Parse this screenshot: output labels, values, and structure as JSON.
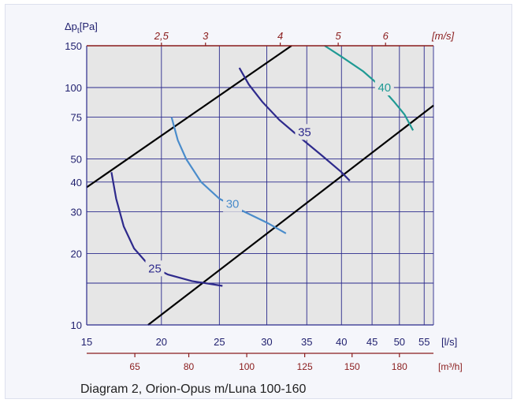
{
  "chart_data": {
    "type": "line",
    "caption": "Diagram 2, Orion-Opus m/Luna 100-160",
    "y_axis": {
      "label": "Δp",
      "label_sub": "t",
      "unit": "[Pa]",
      "scale": "log",
      "range": [
        10,
        150
      ],
      "ticks": [
        10,
        20,
        30,
        40,
        50,
        75,
        100,
        150
      ],
      "tick_labels": [
        "10",
        "20",
        "30",
        "40",
        "50",
        "75",
        "100",
        "150"
      ],
      "extra_gridlines": [
        15
      ]
    },
    "x_axis": {
      "unit": "[l/s]",
      "scale": "log",
      "range": [
        15,
        57
      ],
      "ticks": [
        15,
        20,
        25,
        30,
        35,
        40,
        45,
        50,
        55
      ],
      "tick_labels": [
        "15",
        "20",
        "25",
        "30",
        "35",
        "40",
        "45",
        "50",
        "55"
      ]
    },
    "x_axis_secondary": {
      "unit": "[m³/h]",
      "ticks": [
        65,
        80,
        100,
        125,
        150,
        180
      ],
      "tick_labels": [
        "65",
        "80",
        "100",
        "125",
        "150",
        "180"
      ]
    },
    "top_axis": {
      "unit": "[m/s]",
      "ticks": [
        {
          "label": "2,5",
          "at_flow": 20
        },
        {
          "label": "3",
          "at_flow": 23.7
        },
        {
          "label": "4",
          "at_flow": 31.6
        },
        {
          "label": "5",
          "at_flow": 39.5
        },
        {
          "label": "6",
          "at_flow": 47.4
        }
      ]
    },
    "limit_lines": [
      {
        "points": [
          [
            15,
            38
          ],
          [
            33,
            150
          ]
        ]
      },
      {
        "points": [
          [
            19,
            10
          ],
          [
            57,
            84
          ]
        ]
      }
    ],
    "series": [
      {
        "name": "25",
        "color": "#2e2a8c",
        "points": [
          [
            16.5,
            44
          ],
          [
            16.8,
            34
          ],
          [
            17.3,
            26
          ],
          [
            18.0,
            21
          ],
          [
            19.0,
            18
          ],
          [
            20.5,
            16.3
          ],
          [
            22.5,
            15.3
          ],
          [
            25.3,
            14.6
          ]
        ],
        "label_at": [
          19.5,
          17.3
        ]
      },
      {
        "name": "30",
        "color": "#4a8ccb",
        "points": [
          [
            20.8,
            75
          ],
          [
            21.3,
            60
          ],
          [
            22.0,
            50
          ],
          [
            23.3,
            40
          ],
          [
            25.0,
            34
          ],
          [
            27.5,
            30
          ],
          [
            30.0,
            27
          ],
          [
            32.3,
            24.3
          ]
        ],
        "label_at": [
          26.3,
          32.3
        ]
      },
      {
        "name": "35",
        "color": "#2e2a8c",
        "points": [
          [
            27.0,
            121
          ],
          [
            28.0,
            103
          ],
          [
            29.5,
            87
          ],
          [
            31.5,
            73
          ],
          [
            34.0,
            62
          ],
          [
            37.0,
            52
          ],
          [
            40.0,
            44
          ],
          [
            41.3,
            40.5
          ]
        ],
        "label_at": [
          34.7,
          65
        ]
      },
      {
        "name": "40",
        "color": "#1f9a94",
        "points": [
          [
            37.5,
            150
          ],
          [
            40.0,
            135
          ],
          [
            43.5,
            117
          ],
          [
            46.5,
            101
          ],
          [
            49.0,
            87
          ],
          [
            51.0,
            77
          ],
          [
            52.7,
            66
          ]
        ],
        "label_at": [
          47.2,
          100
        ]
      }
    ],
    "grid": true
  }
}
